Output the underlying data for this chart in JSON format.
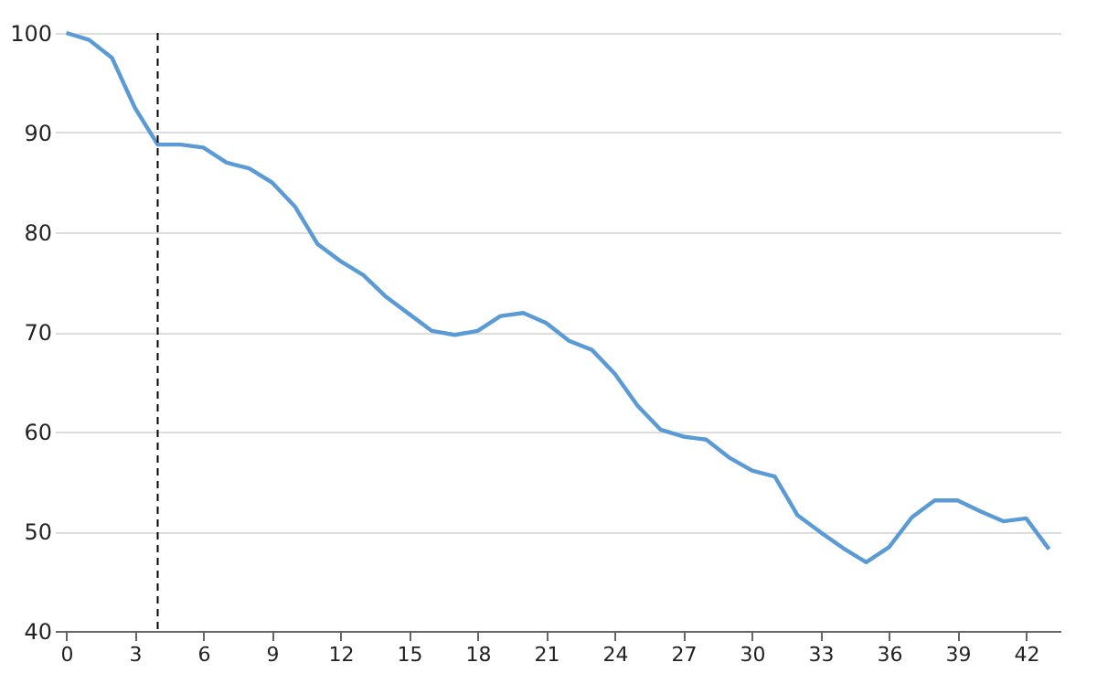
{
  "chart_data": {
    "type": "line",
    "x": [
      0,
      1,
      2,
      3,
      4,
      5,
      6,
      7,
      8,
      9,
      10,
      11,
      12,
      13,
      14,
      15,
      16,
      17,
      18,
      19,
      20,
      21,
      22,
      23,
      24,
      25,
      26,
      27,
      28,
      29,
      30,
      31,
      32,
      33,
      34,
      35,
      36,
      37,
      38,
      39,
      40,
      41,
      42,
      43
    ],
    "series": [
      {
        "color": "#5b9bd5",
        "values": [
          100,
          99.3,
          97.5,
          92.5,
          88.8,
          88.8,
          88.5,
          87,
          86.4,
          85,
          82.6,
          78.8,
          77.1,
          75.7,
          73.5,
          71.8,
          70.1,
          69.7,
          70.1,
          71.6,
          71.9,
          70.9,
          69.1,
          68.2,
          65.8,
          62.6,
          60.2,
          59.5,
          59.2,
          57.4,
          56.1,
          55.5,
          51.6,
          49.9,
          48.3,
          46.9,
          48.4,
          51.4,
          53.1,
          53.1,
          52,
          51,
          51.3,
          48.2
        ]
      }
    ],
    "xlim": [
      -0.5,
      43.5
    ],
    "xticks": [
      0,
      3,
      6,
      9,
      12,
      15,
      18,
      21,
      24,
      27,
      30,
      33,
      36,
      39,
      42
    ],
    "ylim": [
      40,
      100
    ],
    "yticks": [
      40,
      50,
      60,
      70,
      80,
      90,
      100
    ],
    "grid": "y",
    "marker": "none",
    "line_style": "solid",
    "ref_lines": [
      {
        "axis": "x",
        "value": 4,
        "color": "#000000",
        "line_style": "dashed"
      }
    ]
  }
}
